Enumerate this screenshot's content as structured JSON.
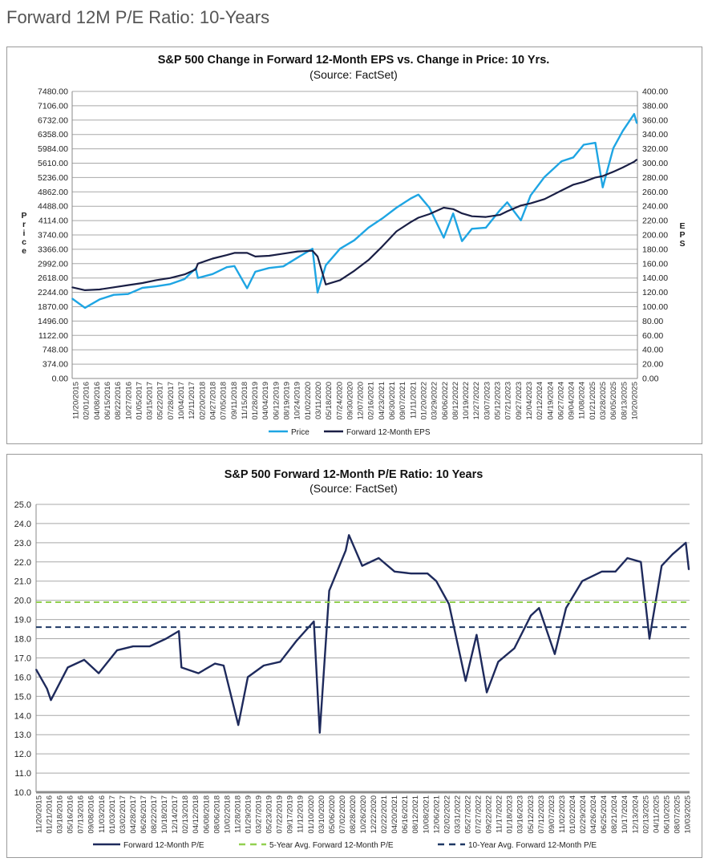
{
  "page_title": "Forward 12M P/E Ratio: 10-Years",
  "chart_data": [
    {
      "type": "line",
      "title": "S&P 500 Change in Forward 12-Month EPS vs. Change in Price: 10 Yrs.",
      "subtitle": "(Source: FactSet)",
      "ylabel": "Price",
      "y2label": "EPS",
      "ylim": [
        0,
        7480
      ],
      "y2lim": [
        0,
        400
      ],
      "yticks": [
        "0.00",
        "374.00",
        "748.00",
        "1122.00",
        "1496.00",
        "1870.00",
        "2244.00",
        "2618.00",
        "2992.00",
        "3366.00",
        "3740.00",
        "4114.00",
        "4488.00",
        "4862.00",
        "5236.00",
        "5610.00",
        "5984.00",
        "6358.00",
        "6732.00",
        "7106.00",
        "7480.00"
      ],
      "y2ticks": [
        "0.00",
        "20.00",
        "40.00",
        "60.00",
        "80.00",
        "100.00",
        "120.00",
        "140.00",
        "160.00",
        "180.00",
        "200.00",
        "220.00",
        "240.00",
        "260.00",
        "280.00",
        "300.00",
        "320.00",
        "340.00",
        "360.00",
        "380.00",
        "400.00"
      ],
      "xticks": [
        "11/20/2015",
        "02/01/2016",
        "04/08/2016",
        "06/15/2016",
        "08/22/2016",
        "10/27/2016",
        "01/05/2017",
        "03/15/2017",
        "05/22/2017",
        "07/28/2017",
        "10/04/2017",
        "12/11/2017",
        "02/20/2018",
        "04/27/2018",
        "07/05/2018",
        "09/11/2018",
        "11/15/2018",
        "01/28/2019",
        "04/04/2019",
        "06/12/2019",
        "08/19/2019",
        "10/24/2019",
        "01/02/2020",
        "03/11/2020",
        "05/18/2020",
        "07/24/2020",
        "09/30/2020",
        "12/07/2020",
        "02/16/2021",
        "04/23/2021",
        "06/30/2021",
        "09/07/2021",
        "11/11/2021",
        "01/20/2022",
        "03/29/2022",
        "06/06/2022",
        "08/12/2022",
        "10/19/2022",
        "12/27/2022",
        "03/07/2023",
        "05/12/2023",
        "07/21/2023",
        "09/27/2023",
        "12/04/2023",
        "02/12/2024",
        "04/19/2024",
        "06/27/2024",
        "09/04/2024",
        "11/08/2024",
        "01/21/2025",
        "03/28/2025",
        "06/05/2025",
        "08/13/2025",
        "10/20/2025"
      ],
      "grid": true,
      "legend_placement": "bottom",
      "x": [
        "2015-11-20",
        "2016-02-11",
        "2016-05-15",
        "2016-08-15",
        "2016-11-15",
        "2017-02-15",
        "2017-05-15",
        "2017-08-15",
        "2017-11-15",
        "2018-01-26",
        "2018-02-09",
        "2018-05-15",
        "2018-08-15",
        "2018-10-03",
        "2018-12-24",
        "2019-02-15",
        "2019-05-15",
        "2019-08-15",
        "2019-11-15",
        "2020-02-19",
        "2020-03-23",
        "2020-05-15",
        "2020-08-15",
        "2020-11-15",
        "2021-02-15",
        "2021-05-15",
        "2021-08-15",
        "2021-11-15",
        "2022-01-03",
        "2022-03-15",
        "2022-06-16",
        "2022-08-16",
        "2022-10-12",
        "2022-12-15",
        "2023-03-15",
        "2023-06-15",
        "2023-07-31",
        "2023-10-27",
        "2023-12-29",
        "2024-03-28",
        "2024-07-16",
        "2024-09-30",
        "2024-12-06",
        "2025-02-19",
        "2025-04-08",
        "2025-06-15",
        "2025-08-15",
        "2025-10-28",
        "2025-11-14"
      ],
      "series": [
        {
          "name": "Price",
          "axis": "left",
          "color": "#1ea5e3",
          "values": [
            2080,
            1840,
            2060,
            2180,
            2200,
            2360,
            2400,
            2460,
            2590,
            2870,
            2620,
            2720,
            2900,
            2930,
            2350,
            2780,
            2880,
            2920,
            3150,
            3380,
            2240,
            2950,
            3380,
            3600,
            3930,
            4170,
            4450,
            4690,
            4790,
            4450,
            3670,
            4300,
            3580,
            3900,
            3930,
            4390,
            4590,
            4120,
            4770,
            5250,
            5660,
            5760,
            6090,
            6140,
            4980,
            6000,
            6450,
            6890,
            6650
          ]
        },
        {
          "name": "Forward 12-Month EPS",
          "axis": "right",
          "color": "#1a1f45",
          "values": [
            127,
            123,
            124,
            127,
            130,
            133,
            137,
            140,
            145,
            152,
            160,
            167,
            172,
            175,
            175,
            170,
            171,
            174,
            177,
            178,
            170,
            131,
            137,
            150,
            165,
            184,
            205,
            218,
            224,
            229,
            238,
            236,
            230,
            226,
            225,
            228,
            233,
            241,
            244,
            250,
            262,
            270,
            274,
            280,
            282,
            288,
            294,
            302,
            305
          ]
        }
      ]
    },
    {
      "type": "line",
      "title": "S&P 500 Forward 12-Month P/E Ratio: 10 Years",
      "subtitle": "(Source: FactSet)",
      "ylim": [
        10,
        25
      ],
      "yticks": [
        "10.0",
        "11.0",
        "12.0",
        "13.0",
        "14.0",
        "15.0",
        "16.0",
        "17.0",
        "18.0",
        "19.0",
        "20.0",
        "21.0",
        "22.0",
        "23.0",
        "24.0",
        "25.0"
      ],
      "xticks": [
        "11/20/2015",
        "01/21/2016",
        "03/18/2016",
        "05/16/2016",
        "07/13/2016",
        "09/08/2016",
        "11/03/2016",
        "01/03/2017",
        "03/02/2017",
        "04/28/2017",
        "06/26/2017",
        "08/22/2017",
        "10/18/2017",
        "12/14/2017",
        "02/13/2018",
        "04/12/2018",
        "06/08/2018",
        "08/06/2018",
        "10/02/2018",
        "11/28/2018",
        "01/29/2019",
        "03/27/2019",
        "05/23/2019",
        "07/22/2019",
        "09/17/2019",
        "11/12/2019",
        "01/10/2020",
        "03/10/2020",
        "05/06/2020",
        "07/02/2020",
        "08/28/2020",
        "10/26/2020",
        "12/22/2020",
        "02/22/2021",
        "04/20/2021",
        "06/16/2021",
        "08/12/2021",
        "10/08/2021",
        "12/06/2021",
        "02/02/2022",
        "03/31/2022",
        "05/27/2022",
        "07/27/2022",
        "09/22/2022",
        "11/17/2022",
        "01/18/2023",
        "03/16/2023",
        "05/12/2023",
        "07/12/2023",
        "09/07/2023",
        "11/02/2023",
        "01/02/2024",
        "02/29/2024",
        "04/26/2024",
        "06/25/2024",
        "08/21/2024",
        "10/17/2024",
        "12/13/2024",
        "02/13/2025",
        "04/11/2025",
        "06/10/2025",
        "08/07/2025",
        "10/03/2025"
      ],
      "grid": true,
      "legend_placement": "bottom",
      "x": [
        "2015-11-20",
        "2016-01-20",
        "2016-02-11",
        "2016-05-15",
        "2016-08-15",
        "2016-11-04",
        "2017-02-15",
        "2017-05-15",
        "2017-08-15",
        "2017-11-15",
        "2018-01-26",
        "2018-02-09",
        "2018-05-15",
        "2018-08-15",
        "2018-10-03",
        "2018-12-24",
        "2019-02-15",
        "2019-05-15",
        "2019-08-15",
        "2019-11-15",
        "2020-02-19",
        "2020-03-23",
        "2020-05-15",
        "2020-08-15",
        "2020-09-02",
        "2020-11-15",
        "2021-02-15",
        "2021-05-15",
        "2021-08-15",
        "2021-11-15",
        "2022-01-03",
        "2022-03-15",
        "2022-06-16",
        "2022-08-16",
        "2022-10-12",
        "2022-12-15",
        "2023-03-15",
        "2023-06-15",
        "2023-07-31",
        "2023-10-27",
        "2023-12-29",
        "2024-03-28",
        "2024-07-16",
        "2024-09-30",
        "2024-12-06",
        "2025-02-19",
        "2025-04-08",
        "2025-06-15",
        "2025-08-15",
        "2025-10-28",
        "2025-11-14"
      ],
      "series": [
        {
          "name": "Forward 12-Month P/E",
          "color": "#1e2a5c",
          "style": "solid",
          "values": [
            16.4,
            15.4,
            14.8,
            16.5,
            16.9,
            16.2,
            17.4,
            17.6,
            17.6,
            18.0,
            18.4,
            16.5,
            16.2,
            16.7,
            16.6,
            13.5,
            16.0,
            16.6,
            16.8,
            17.9,
            18.9,
            13.1,
            20.5,
            22.6,
            23.4,
            21.8,
            22.2,
            21.5,
            21.4,
            21.4,
            21.0,
            19.8,
            15.8,
            18.2,
            15.2,
            16.8,
            17.5,
            19.2,
            19.6,
            17.2,
            19.6,
            21.0,
            21.5,
            21.5,
            22.2,
            22.0,
            18.0,
            21.8,
            22.4,
            23.0,
            21.6
          ]
        },
        {
          "name": "5-Year Avg. Forward 12-Month P/E",
          "color": "#92d050",
          "style": "dashed",
          "value": 19.9
        },
        {
          "name": "10-Year Avg. Forward 12-Month P/E",
          "color": "#1f3864",
          "style": "dashed",
          "value": 18.6
        }
      ]
    }
  ]
}
